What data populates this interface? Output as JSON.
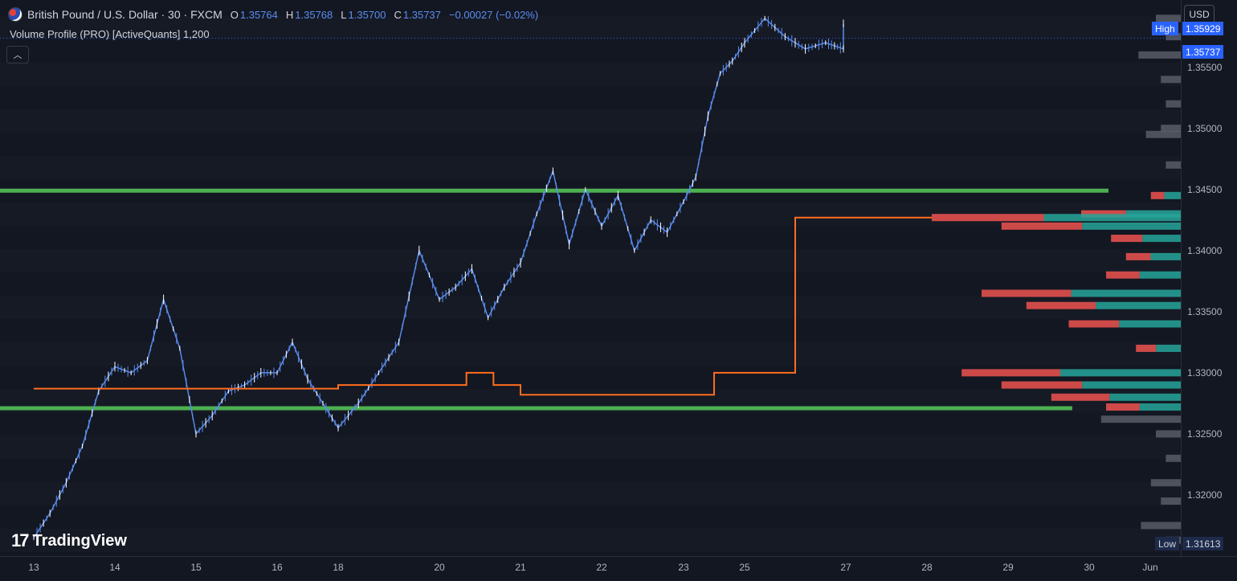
{
  "header": {
    "symbol_title": "British Pound / U.S. Dollar · 30 · FXCM",
    "ohlc": [
      {
        "key": "O",
        "value": "1.35764"
      },
      {
        "key": "H",
        "value": "1.35768"
      },
      {
        "key": "L",
        "value": "1.35700"
      },
      {
        "key": "C",
        "value": "1.35737"
      }
    ],
    "change": "−0.00027 (−0.02%)",
    "indicator": "Volume Profile (PRO) [ActiveQuants] 1,200"
  },
  "axis": {
    "currency": "USD",
    "high_label": "High",
    "high_value": "1.35929",
    "last_value": "1.35737",
    "low_label": "Low",
    "low_value": "1.31613"
  },
  "branding": {
    "logo_text": "TradingView"
  },
  "colors": {
    "background": "#131722",
    "candle": "#5b8ef0",
    "poc_line": "#ff6d1f",
    "value_area_line": "#4caf50",
    "profile_bull": "#26a69a",
    "profile_bear": "#ef5350",
    "profile_outside": "#5d606b",
    "last_price": "#2962ff"
  },
  "chart_data": {
    "type": "candlestick",
    "y_range": [
      1.315,
      1.3605
    ],
    "y_ticks": [
      "1.35500",
      "1.35000",
      "1.34500",
      "1.34000",
      "1.33500",
      "1.33000",
      "1.32500",
      "1.32000"
    ],
    "x_ticks": [
      "13",
      "14",
      "15",
      "16",
      "18",
      "20",
      "21",
      "22",
      "23",
      "25",
      "27",
      "28",
      "29",
      "30",
      "Jun"
    ],
    "price_path": [
      [
        "13",
        1.3165
      ],
      [
        "13",
        1.3185
      ],
      [
        "13",
        1.321
      ],
      [
        "13",
        1.324
      ],
      [
        "13",
        1.3285
      ],
      [
        "14",
        1.3305
      ],
      [
        "14",
        1.33
      ],
      [
        "14",
        1.331
      ],
      [
        "14",
        1.336
      ],
      [
        "14",
        1.332
      ],
      [
        "15",
        1.325
      ],
      [
        "15",
        1.3265
      ],
      [
        "15",
        1.3285
      ],
      [
        "15",
        1.329
      ],
      [
        "15",
        1.33
      ],
      [
        "16",
        1.33
      ],
      [
        "16",
        1.3325
      ],
      [
        "16",
        1.3295
      ],
      [
        "16",
        1.3275
      ],
      [
        "18",
        1.3255
      ],
      [
        "18",
        1.3275
      ],
      [
        "18",
        1.33
      ],
      [
        "18",
        1.3325
      ],
      [
        "18",
        1.34
      ],
      [
        "20",
        1.336
      ],
      [
        "20",
        1.337
      ],
      [
        "20",
        1.3385
      ],
      [
        "20",
        1.3345
      ],
      [
        "20",
        1.337
      ],
      [
        "21",
        1.339
      ],
      [
        "21",
        1.343
      ],
      [
        "21",
        1.3465
      ],
      [
        "21",
        1.3405
      ],
      [
        "21",
        1.345
      ],
      [
        "22",
        1.342
      ],
      [
        "22",
        1.3445
      ],
      [
        "22",
        1.34
      ],
      [
        "22",
        1.3425
      ],
      [
        "22",
        1.3415
      ],
      [
        "23",
        1.344
      ],
      [
        "23",
        1.346
      ],
      [
        "23",
        1.351
      ],
      [
        "23",
        1.3545
      ],
      [
        "23",
        1.3555
      ],
      [
        "25",
        1.357
      ],
      [
        "25",
        1.359
      ],
      [
        "25",
        1.3575
      ],
      [
        "25",
        1.3565
      ],
      [
        "25",
        1.357
      ],
      [
        "27",
        1.3565
      ],
      [
        "27",
        1.3585
      ],
      [
        "27",
        1.3574
      ]
    ],
    "poc_path": [
      [
        "13",
        1.3287
      ],
      [
        "18",
        1.329
      ],
      [
        "20",
        1.329
      ],
      [
        "20",
        1.33
      ],
      [
        "20",
        1.329
      ],
      [
        "21",
        1.3282
      ],
      [
        "23",
        1.3282
      ],
      [
        "23",
        1.33
      ],
      [
        "25",
        1.33
      ],
      [
        "25",
        1.3427
      ],
      [
        "27",
        1.3427
      ]
    ],
    "value_area": {
      "high": 1.3449,
      "low": 1.3271
    },
    "volume_profile": [
      {
        "price": 1.359,
        "volume": 0.1,
        "in_value_area": false
      },
      {
        "price": 1.3575,
        "volume": 0.06,
        "in_value_area": false
      },
      {
        "price": 1.356,
        "volume": 0.17,
        "in_value_area": false
      },
      {
        "price": 1.354,
        "volume": 0.08,
        "in_value_area": false
      },
      {
        "price": 1.352,
        "volume": 0.06,
        "in_value_area": false
      },
      {
        "price": 1.35,
        "volume": 0.08,
        "in_value_area": false
      },
      {
        "price": 1.3495,
        "volume": 0.14,
        "in_value_area": false
      },
      {
        "price": 1.347,
        "volume": 0.06,
        "in_value_area": false
      },
      {
        "price": 1.3445,
        "volume": 0.12,
        "in_value_area": true
      },
      {
        "price": 1.343,
        "volume": 0.4,
        "in_value_area": true
      },
      {
        "price": 1.3427,
        "volume": 1.0,
        "in_value_area": true
      },
      {
        "price": 1.342,
        "volume": 0.72,
        "in_value_area": true
      },
      {
        "price": 1.341,
        "volume": 0.28,
        "in_value_area": true
      },
      {
        "price": 1.3395,
        "volume": 0.22,
        "in_value_area": true
      },
      {
        "price": 1.338,
        "volume": 0.3,
        "in_value_area": true
      },
      {
        "price": 1.3365,
        "volume": 0.8,
        "in_value_area": true
      },
      {
        "price": 1.3355,
        "volume": 0.62,
        "in_value_area": true
      },
      {
        "price": 1.334,
        "volume": 0.45,
        "in_value_area": true
      },
      {
        "price": 1.332,
        "volume": 0.18,
        "in_value_area": true
      },
      {
        "price": 1.33,
        "volume": 0.88,
        "in_value_area": true
      },
      {
        "price": 1.329,
        "volume": 0.72,
        "in_value_area": true
      },
      {
        "price": 1.328,
        "volume": 0.52,
        "in_value_area": true
      },
      {
        "price": 1.3272,
        "volume": 0.3,
        "in_value_area": true
      },
      {
        "price": 1.3262,
        "volume": 0.32,
        "in_value_area": false
      },
      {
        "price": 1.325,
        "volume": 0.1,
        "in_value_area": false
      },
      {
        "price": 1.323,
        "volume": 0.06,
        "in_value_area": false
      },
      {
        "price": 1.321,
        "volume": 0.12,
        "in_value_area": false
      },
      {
        "price": 1.3195,
        "volume": 0.08,
        "in_value_area": false
      },
      {
        "price": 1.3175,
        "volume": 0.16,
        "in_value_area": false
      },
      {
        "price": 1.3163,
        "volume": 0.06,
        "in_value_area": false
      }
    ]
  }
}
